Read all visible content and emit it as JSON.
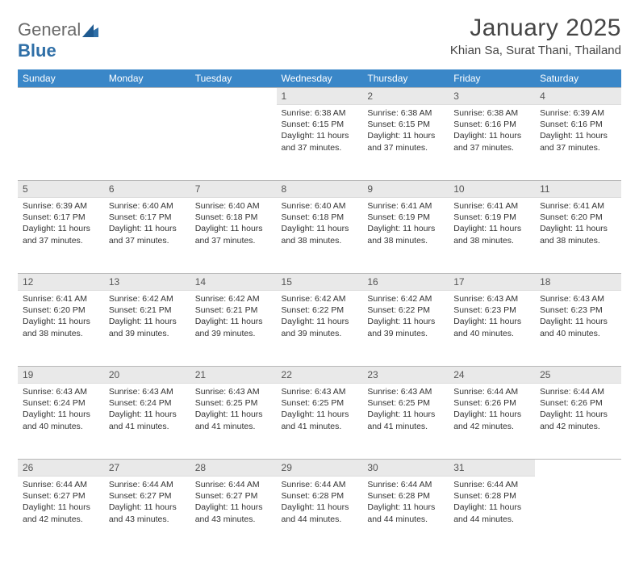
{
  "brand": {
    "part1": "General",
    "part2": "Blue"
  },
  "title": "January 2025",
  "location": "Khian Sa, Surat Thani, Thailand",
  "colors": {
    "header_bg": "#3a87c8",
    "header_text": "#ffffff",
    "daynum_bg": "#e9e9e9",
    "border": "#b8b8b8",
    "text": "#333333",
    "logo_gray": "#6a6a6a",
    "logo_blue": "#2f6fa7"
  },
  "weekdays": [
    "Sunday",
    "Monday",
    "Tuesday",
    "Wednesday",
    "Thursday",
    "Friday",
    "Saturday"
  ],
  "first_weekday_index": 3,
  "days": [
    {
      "n": 1,
      "sunrise": "6:38 AM",
      "sunset": "6:15 PM",
      "daylight": "11 hours and 37 minutes."
    },
    {
      "n": 2,
      "sunrise": "6:38 AM",
      "sunset": "6:15 PM",
      "daylight": "11 hours and 37 minutes."
    },
    {
      "n": 3,
      "sunrise": "6:38 AM",
      "sunset": "6:16 PM",
      "daylight": "11 hours and 37 minutes."
    },
    {
      "n": 4,
      "sunrise": "6:39 AM",
      "sunset": "6:16 PM",
      "daylight": "11 hours and 37 minutes."
    },
    {
      "n": 5,
      "sunrise": "6:39 AM",
      "sunset": "6:17 PM",
      "daylight": "11 hours and 37 minutes."
    },
    {
      "n": 6,
      "sunrise": "6:40 AM",
      "sunset": "6:17 PM",
      "daylight": "11 hours and 37 minutes."
    },
    {
      "n": 7,
      "sunrise": "6:40 AM",
      "sunset": "6:18 PM",
      "daylight": "11 hours and 37 minutes."
    },
    {
      "n": 8,
      "sunrise": "6:40 AM",
      "sunset": "6:18 PM",
      "daylight": "11 hours and 38 minutes."
    },
    {
      "n": 9,
      "sunrise": "6:41 AM",
      "sunset": "6:19 PM",
      "daylight": "11 hours and 38 minutes."
    },
    {
      "n": 10,
      "sunrise": "6:41 AM",
      "sunset": "6:19 PM",
      "daylight": "11 hours and 38 minutes."
    },
    {
      "n": 11,
      "sunrise": "6:41 AM",
      "sunset": "6:20 PM",
      "daylight": "11 hours and 38 minutes."
    },
    {
      "n": 12,
      "sunrise": "6:41 AM",
      "sunset": "6:20 PM",
      "daylight": "11 hours and 38 minutes."
    },
    {
      "n": 13,
      "sunrise": "6:42 AM",
      "sunset": "6:21 PM",
      "daylight": "11 hours and 39 minutes."
    },
    {
      "n": 14,
      "sunrise": "6:42 AM",
      "sunset": "6:21 PM",
      "daylight": "11 hours and 39 minutes."
    },
    {
      "n": 15,
      "sunrise": "6:42 AM",
      "sunset": "6:22 PM",
      "daylight": "11 hours and 39 minutes."
    },
    {
      "n": 16,
      "sunrise": "6:42 AM",
      "sunset": "6:22 PM",
      "daylight": "11 hours and 39 minutes."
    },
    {
      "n": 17,
      "sunrise": "6:43 AM",
      "sunset": "6:23 PM",
      "daylight": "11 hours and 40 minutes."
    },
    {
      "n": 18,
      "sunrise": "6:43 AM",
      "sunset": "6:23 PM",
      "daylight": "11 hours and 40 minutes."
    },
    {
      "n": 19,
      "sunrise": "6:43 AM",
      "sunset": "6:24 PM",
      "daylight": "11 hours and 40 minutes."
    },
    {
      "n": 20,
      "sunrise": "6:43 AM",
      "sunset": "6:24 PM",
      "daylight": "11 hours and 41 minutes."
    },
    {
      "n": 21,
      "sunrise": "6:43 AM",
      "sunset": "6:25 PM",
      "daylight": "11 hours and 41 minutes."
    },
    {
      "n": 22,
      "sunrise": "6:43 AM",
      "sunset": "6:25 PM",
      "daylight": "11 hours and 41 minutes."
    },
    {
      "n": 23,
      "sunrise": "6:43 AM",
      "sunset": "6:25 PM",
      "daylight": "11 hours and 41 minutes."
    },
    {
      "n": 24,
      "sunrise": "6:44 AM",
      "sunset": "6:26 PM",
      "daylight": "11 hours and 42 minutes."
    },
    {
      "n": 25,
      "sunrise": "6:44 AM",
      "sunset": "6:26 PM",
      "daylight": "11 hours and 42 minutes."
    },
    {
      "n": 26,
      "sunrise": "6:44 AM",
      "sunset": "6:27 PM",
      "daylight": "11 hours and 42 minutes."
    },
    {
      "n": 27,
      "sunrise": "6:44 AM",
      "sunset": "6:27 PM",
      "daylight": "11 hours and 43 minutes."
    },
    {
      "n": 28,
      "sunrise": "6:44 AM",
      "sunset": "6:27 PM",
      "daylight": "11 hours and 43 minutes."
    },
    {
      "n": 29,
      "sunrise": "6:44 AM",
      "sunset": "6:28 PM",
      "daylight": "11 hours and 44 minutes."
    },
    {
      "n": 30,
      "sunrise": "6:44 AM",
      "sunset": "6:28 PM",
      "daylight": "11 hours and 44 minutes."
    },
    {
      "n": 31,
      "sunrise": "6:44 AM",
      "sunset": "6:28 PM",
      "daylight": "11 hours and 44 minutes."
    }
  ],
  "labels": {
    "sunrise": "Sunrise:",
    "sunset": "Sunset:",
    "daylight": "Daylight:"
  }
}
